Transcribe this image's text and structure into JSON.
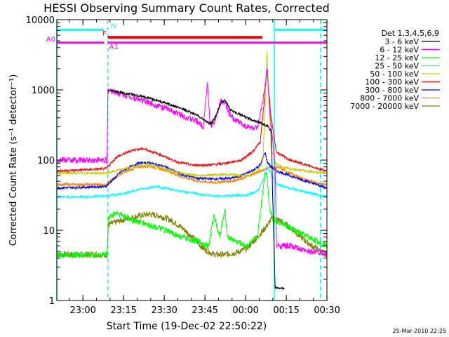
{
  "chart_data": {
    "type": "line",
    "title": "HESSI Observing Summary Count Rates, Corrected",
    "xlabel": "Start Time (19-Dec-02 22:50:22)",
    "ylabel": "Corrected Count Rate (s⁻¹ detector⁻¹)",
    "stamp": "25-Mar-2010 22:25",
    "x_unit": "minutes after 22:50:22 UT",
    "xlim": [
      0,
      99.6
    ],
    "ylim": [
      1,
      10000
    ],
    "yscale": "log",
    "x_ticks": [
      {
        "label": "23:00",
        "value": 9.63
      },
      {
        "label": "23:15",
        "value": 24.63
      },
      {
        "label": "23:30",
        "value": 39.63
      },
      {
        "label": "23:45",
        "value": 54.63
      },
      {
        "label": "00:00",
        "value": 69.63
      },
      {
        "label": "00:15",
        "value": 84.63
      },
      {
        "label": "00:30",
        "value": 99.63
      }
    ],
    "y_ticks": [
      {
        "label": "1",
        "value": 1
      },
      {
        "label": "10",
        "value": 10
      },
      {
        "label": "100",
        "value": 100
      },
      {
        "label": "1000",
        "value": 1000
      },
      {
        "label": "10000",
        "value": 10000
      }
    ],
    "legend": {
      "title": "Det 1,3,4,5,6,9",
      "position": "right"
    },
    "series": [
      {
        "name": "3 - 6 keV",
        "color": "#000000",
        "x": [
          0,
          18.5,
          18.8,
          25,
          32,
          40,
          47,
          52,
          55,
          56.5,
          58,
          60.5,
          62,
          64,
          66,
          70,
          75,
          78,
          79.2,
          79.5,
          80.5,
          84
        ],
        "y": [
          null,
          null,
          1000,
          900,
          800,
          650,
          520,
          430,
          360,
          330,
          380,
          650,
          700,
          520,
          480,
          400,
          340,
          300,
          250,
          40,
          1.5,
          1.5
        ]
      },
      {
        "name": "6 - 12 keV",
        "color": "#ff00ff",
        "x": [
          0,
          18,
          18.5,
          18.8,
          25,
          32,
          40,
          47,
          52,
          54,
          55.5,
          56.5,
          58,
          60.5,
          62,
          64,
          66,
          70,
          74,
          76.5,
          77.5,
          78.5,
          80.5,
          81,
          86,
          92,
          96,
          99.6
        ],
        "y": [
          100,
          100,
          85,
          1000,
          850,
          700,
          550,
          420,
          350,
          300,
          1300,
          320,
          330,
          700,
          650,
          420,
          370,
          300,
          280,
          900,
          2000,
          500,
          80,
          6,
          6,
          5,
          5,
          4.5
        ]
      },
      {
        "name": "12 - 25 keV",
        "color": "#00ff00",
        "x": [
          0,
          18.5,
          19,
          22,
          28,
          34,
          40,
          46,
          52,
          56,
          58,
          60,
          62,
          63,
          66,
          70,
          74,
          76.8,
          77.5,
          78.5,
          80,
          84,
          90,
          96,
          99.6
        ],
        "y": [
          4.5,
          4.5,
          15,
          18,
          14,
          12,
          10,
          8,
          7,
          6,
          17,
          8,
          19,
          8,
          7,
          6,
          8,
          70,
          60,
          20,
          14,
          12,
          9,
          7,
          6
        ]
      },
      {
        "name": "25 - 50 keV",
        "color": "#00ffff",
        "x": [
          0,
          10,
          18,
          24,
          30,
          36,
          40,
          46,
          52,
          58,
          64,
          70,
          74,
          76.8,
          77.5,
          79,
          81,
          86,
          92,
          99.6
        ],
        "y": [
          30,
          30,
          31,
          33,
          38,
          42,
          40,
          36,
          33,
          31,
          31,
          32,
          36,
          60,
          80,
          65,
          45,
          40,
          35,
          30
        ]
      },
      {
        "name": "50 - 100 keV",
        "color": "#cccc00",
        "x": [
          0,
          18,
          25,
          32,
          38,
          46,
          52,
          58,
          64,
          70,
          74,
          76,
          77.5,
          79,
          81,
          86,
          92,
          99.6
        ],
        "y": [
          65,
          65,
          75,
          88,
          80,
          65,
          60,
          62,
          62,
          60,
          70,
          95,
          3500,
          150,
          85,
          75,
          70,
          65
        ]
      },
      {
        "name": "100 - 300 keV",
        "color": "#ff0000",
        "x": [
          0,
          18,
          22,
          28,
          32,
          38,
          44,
          50,
          56,
          62,
          68,
          72,
          75,
          76.8,
          77.5,
          79,
          81,
          86,
          92,
          99.6
        ],
        "y": [
          70,
          75,
          110,
          140,
          145,
          120,
          95,
          85,
          85,
          90,
          100,
          130,
          180,
          900,
          2000,
          400,
          130,
          100,
          85,
          70
        ]
      },
      {
        "name": "300 - 800 keV",
        "color": "#0000ff",
        "x": [
          0,
          18,
          24,
          30,
          34,
          40,
          46,
          52,
          58,
          64,
          68,
          72,
          75,
          76.8,
          77.5,
          79,
          81,
          86,
          92,
          99.6
        ],
        "y": [
          40,
          42,
          70,
          90,
          92,
          80,
          62,
          55,
          54,
          55,
          60,
          70,
          85,
          130,
          95,
          80,
          70,
          60,
          50,
          40
        ]
      },
      {
        "name": "800 - 7000 keV",
        "color": "#ff8000",
        "x": [
          0,
          18,
          24,
          30,
          34,
          40,
          46,
          52,
          58,
          64,
          68,
          72,
          76,
          79,
          82,
          86,
          92,
          99.6
        ],
        "y": [
          45,
          45,
          65,
          80,
          82,
          72,
          58,
          50,
          48,
          50,
          54,
          62,
          72,
          80,
          78,
          65,
          52,
          44
        ]
      },
      {
        "name": "7000 - 20000 keV",
        "color": "#808000",
        "x": [
          0,
          18.5,
          19,
          24,
          30,
          34,
          38,
          42,
          46,
          50,
          54,
          58,
          62,
          66,
          70,
          74,
          77,
          79.5,
          82,
          86,
          90,
          94,
          99.6
        ],
        "y": [
          4.5,
          4.5,
          12,
          14,
          16,
          17,
          16,
          14,
          11,
          8,
          5.5,
          4.5,
          4.5,
          4.8,
          5.5,
          8,
          11,
          15,
          14,
          11,
          8,
          6,
          4.5
        ]
      }
    ],
    "annotations": {
      "vlines": [
        {
          "x": 0,
          "color": "#00ffff",
          "style": "solid"
        },
        {
          "x": 18.8,
          "color": "#00ffff",
          "style": "dashed"
        },
        {
          "x": 80.2,
          "color": "#00ffff",
          "style": "solid"
        },
        {
          "x": 97.2,
          "color": "#00ffff",
          "style": "dashed"
        }
      ],
      "flags": [
        {
          "label": "N",
          "color": "#00ffff",
          "segments": [
            [
              0,
              17.5
            ],
            [
              80.4,
              99.6
            ]
          ],
          "y": 7200,
          "thickness": 3
        },
        {
          "label": "F",
          "color": "#ff0000",
          "segments": [
            [
              18.8,
              75.8
            ]
          ],
          "y": 5600,
          "thickness": 4
        },
        {
          "label": "A0",
          "color": "#ff00ff",
          "segments": [
            [
              0,
              17.5
            ]
          ],
          "y": 4700,
          "thickness": 3
        },
        {
          "label": "A1",
          "color": "#ff00ff",
          "segments": [
            [
              18.8,
              99.6
            ]
          ],
          "y": 4700,
          "thickness": 3
        }
      ]
    }
  }
}
